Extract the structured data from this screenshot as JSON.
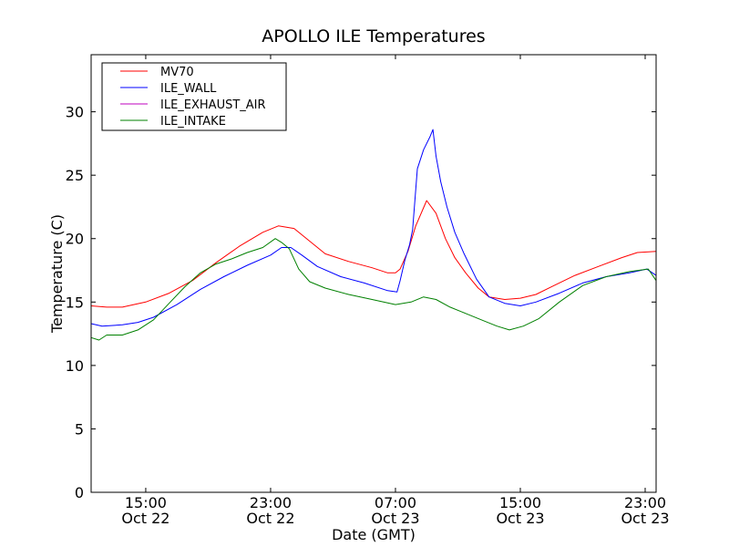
{
  "chart_data": {
    "type": "line",
    "title": "APOLLO ILE Temperatures",
    "xlabel": "Date (GMT)",
    "ylabel": "Temperature (C)",
    "xlim_hours": [
      11.5,
      47.7
    ],
    "ylim": [
      0,
      34.5
    ],
    "yticks": [
      0,
      5,
      10,
      15,
      20,
      25,
      30
    ],
    "xticks": [
      {
        "hour": 15,
        "time": "15:00",
        "date": "Oct 22"
      },
      {
        "hour": 23,
        "time": "23:00",
        "date": "Oct 22"
      },
      {
        "hour": 31,
        "time": "07:00",
        "date": "Oct 23"
      },
      {
        "hour": 39,
        "time": "15:00",
        "date": "Oct 23"
      },
      {
        "hour": 47,
        "time": "23:00",
        "date": "Oct 23"
      }
    ],
    "x_origin": "Oct 22 00:00 GMT",
    "legend_position": "upper-left",
    "grid": false,
    "series": [
      {
        "name": "MV70",
        "color": "#ff0000",
        "points": [
          [
            11.5,
            14.7
          ],
          [
            12.5,
            14.6
          ],
          [
            13.5,
            14.6
          ],
          [
            15,
            15.0
          ],
          [
            16.5,
            15.7
          ],
          [
            18,
            16.7
          ],
          [
            19.5,
            18.1
          ],
          [
            21,
            19.4
          ],
          [
            22.5,
            20.5
          ],
          [
            23.5,
            21.0
          ],
          [
            24.5,
            20.8
          ],
          [
            25.5,
            19.8
          ],
          [
            26.5,
            18.8
          ],
          [
            28,
            18.2
          ],
          [
            29.5,
            17.7
          ],
          [
            30.5,
            17.3
          ],
          [
            31,
            17.3
          ],
          [
            31.3,
            17.6
          ],
          [
            31.8,
            19.0
          ],
          [
            32.3,
            21.0
          ],
          [
            33,
            23.0
          ],
          [
            33.6,
            22.0
          ],
          [
            34.2,
            20.0
          ],
          [
            34.8,
            18.5
          ],
          [
            35.5,
            17.3
          ],
          [
            36.3,
            16.1
          ],
          [
            37,
            15.4
          ],
          [
            38,
            15.2
          ],
          [
            39,
            15.3
          ],
          [
            40,
            15.6
          ],
          [
            41,
            16.2
          ],
          [
            42.5,
            17.1
          ],
          [
            44,
            17.8
          ],
          [
            45.5,
            18.5
          ],
          [
            46.5,
            18.9
          ],
          [
            47.7,
            19.0
          ]
        ]
      },
      {
        "name": "ILE_WALL",
        "color": "#0000ff",
        "points": [
          [
            11.5,
            13.3
          ],
          [
            12.2,
            13.1
          ],
          [
            13.5,
            13.2
          ],
          [
            14.5,
            13.4
          ],
          [
            15.5,
            13.8
          ],
          [
            17,
            14.8
          ],
          [
            18.5,
            16.0
          ],
          [
            20,
            17.0
          ],
          [
            21.5,
            17.9
          ],
          [
            23,
            18.7
          ],
          [
            23.7,
            19.3
          ],
          [
            24.3,
            19.3
          ],
          [
            25,
            18.7
          ],
          [
            26,
            17.8
          ],
          [
            27.5,
            17.0
          ],
          [
            29,
            16.5
          ],
          [
            30.5,
            15.9
          ],
          [
            31.1,
            15.8
          ],
          [
            31.3,
            16.7
          ],
          [
            31.6,
            18.3
          ],
          [
            31.9,
            19.5
          ],
          [
            32.1,
            20.7
          ],
          [
            32.4,
            25.5
          ],
          [
            32.8,
            27.0
          ],
          [
            33.2,
            28.0
          ],
          [
            33.4,
            28.6
          ],
          [
            33.6,
            26.5
          ],
          [
            33.9,
            24.5
          ],
          [
            34.3,
            22.5
          ],
          [
            34.8,
            20.5
          ],
          [
            35.4,
            18.8
          ],
          [
            36.2,
            16.8
          ],
          [
            37.0,
            15.4
          ],
          [
            38,
            14.9
          ],
          [
            39,
            14.7
          ],
          [
            40,
            15.0
          ],
          [
            41.5,
            15.7
          ],
          [
            43,
            16.5
          ],
          [
            44.5,
            17.0
          ],
          [
            46,
            17.3
          ],
          [
            47.1,
            17.6
          ],
          [
            47.7,
            17.1
          ]
        ]
      },
      {
        "name": "ILE_EXHAUST_AIR",
        "color": "#bf00bf",
        "points": []
      },
      {
        "name": "ILE_INTAKE",
        "color": "#008000",
        "points": [
          [
            11.5,
            12.2
          ],
          [
            12.0,
            12.0
          ],
          [
            12.5,
            12.4
          ],
          [
            13.5,
            12.4
          ],
          [
            14.5,
            12.8
          ],
          [
            15.5,
            13.6
          ],
          [
            16.5,
            14.9
          ],
          [
            17.5,
            16.2
          ],
          [
            18.5,
            17.3
          ],
          [
            19.5,
            18.0
          ],
          [
            20.5,
            18.4
          ],
          [
            21.5,
            18.9
          ],
          [
            22.5,
            19.3
          ],
          [
            23.3,
            20.0
          ],
          [
            23.7,
            19.7
          ],
          [
            24.2,
            19.2
          ],
          [
            24.8,
            17.6
          ],
          [
            25.5,
            16.6
          ],
          [
            26.5,
            16.1
          ],
          [
            28,
            15.6
          ],
          [
            29.5,
            15.2
          ],
          [
            31,
            14.8
          ],
          [
            32,
            15.0
          ],
          [
            32.8,
            15.4
          ],
          [
            33.6,
            15.2
          ],
          [
            34.5,
            14.6
          ],
          [
            35.5,
            14.1
          ],
          [
            36.5,
            13.6
          ],
          [
            37.5,
            13.1
          ],
          [
            38.3,
            12.8
          ],
          [
            39.2,
            13.1
          ],
          [
            40.2,
            13.7
          ],
          [
            41.5,
            15.0
          ],
          [
            43,
            16.3
          ],
          [
            44.5,
            17.0
          ],
          [
            46,
            17.4
          ],
          [
            47.2,
            17.6
          ],
          [
            47.7,
            16.7
          ]
        ]
      }
    ]
  }
}
